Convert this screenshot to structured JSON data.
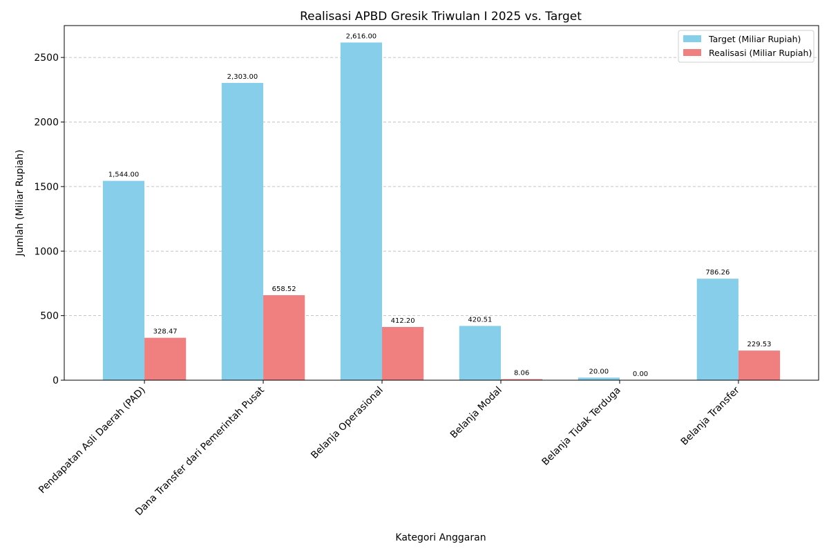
{
  "chart_data": {
    "type": "bar",
    "title": "Realisasi APBD Gresik Triwulan I 2025 vs. Target",
    "xlabel": "Kategori Anggaran",
    "ylabel": "Jumlah (Miliar Rupiah)",
    "ylim": [
      0,
      2747
    ],
    "yticks": [
      0,
      500,
      1000,
      1500,
      2000,
      2500
    ],
    "grid": "y-dashed",
    "legend_position": "top-right",
    "categories": [
      "Pendapatan Asli Daerah (PAD)",
      "Dana Transfer dari Pemerintah Pusat",
      "Belanja Operasional",
      "Belanja Modal",
      "Belanja Tidak Terduga",
      "Belanja Transfer"
    ],
    "series": [
      {
        "name": "Target (Miliar Rupiah)",
        "color": "#87ceeb",
        "values": [
          1544.0,
          2303.0,
          2616.0,
          420.51,
          20.0,
          786.26
        ],
        "labels": [
          "1,544.00",
          "2,303.00",
          "2,616.00",
          "420.51",
          "20.00",
          "786.26"
        ]
      },
      {
        "name": "Realisasi (Miliar Rupiah)",
        "color": "#f08080",
        "values": [
          328.47,
          658.52,
          412.2,
          8.06,
          0.0,
          229.53
        ],
        "labels": [
          "328.47",
          "658.52",
          "412.20",
          "8.06",
          "0.00",
          "229.53"
        ]
      }
    ]
  }
}
